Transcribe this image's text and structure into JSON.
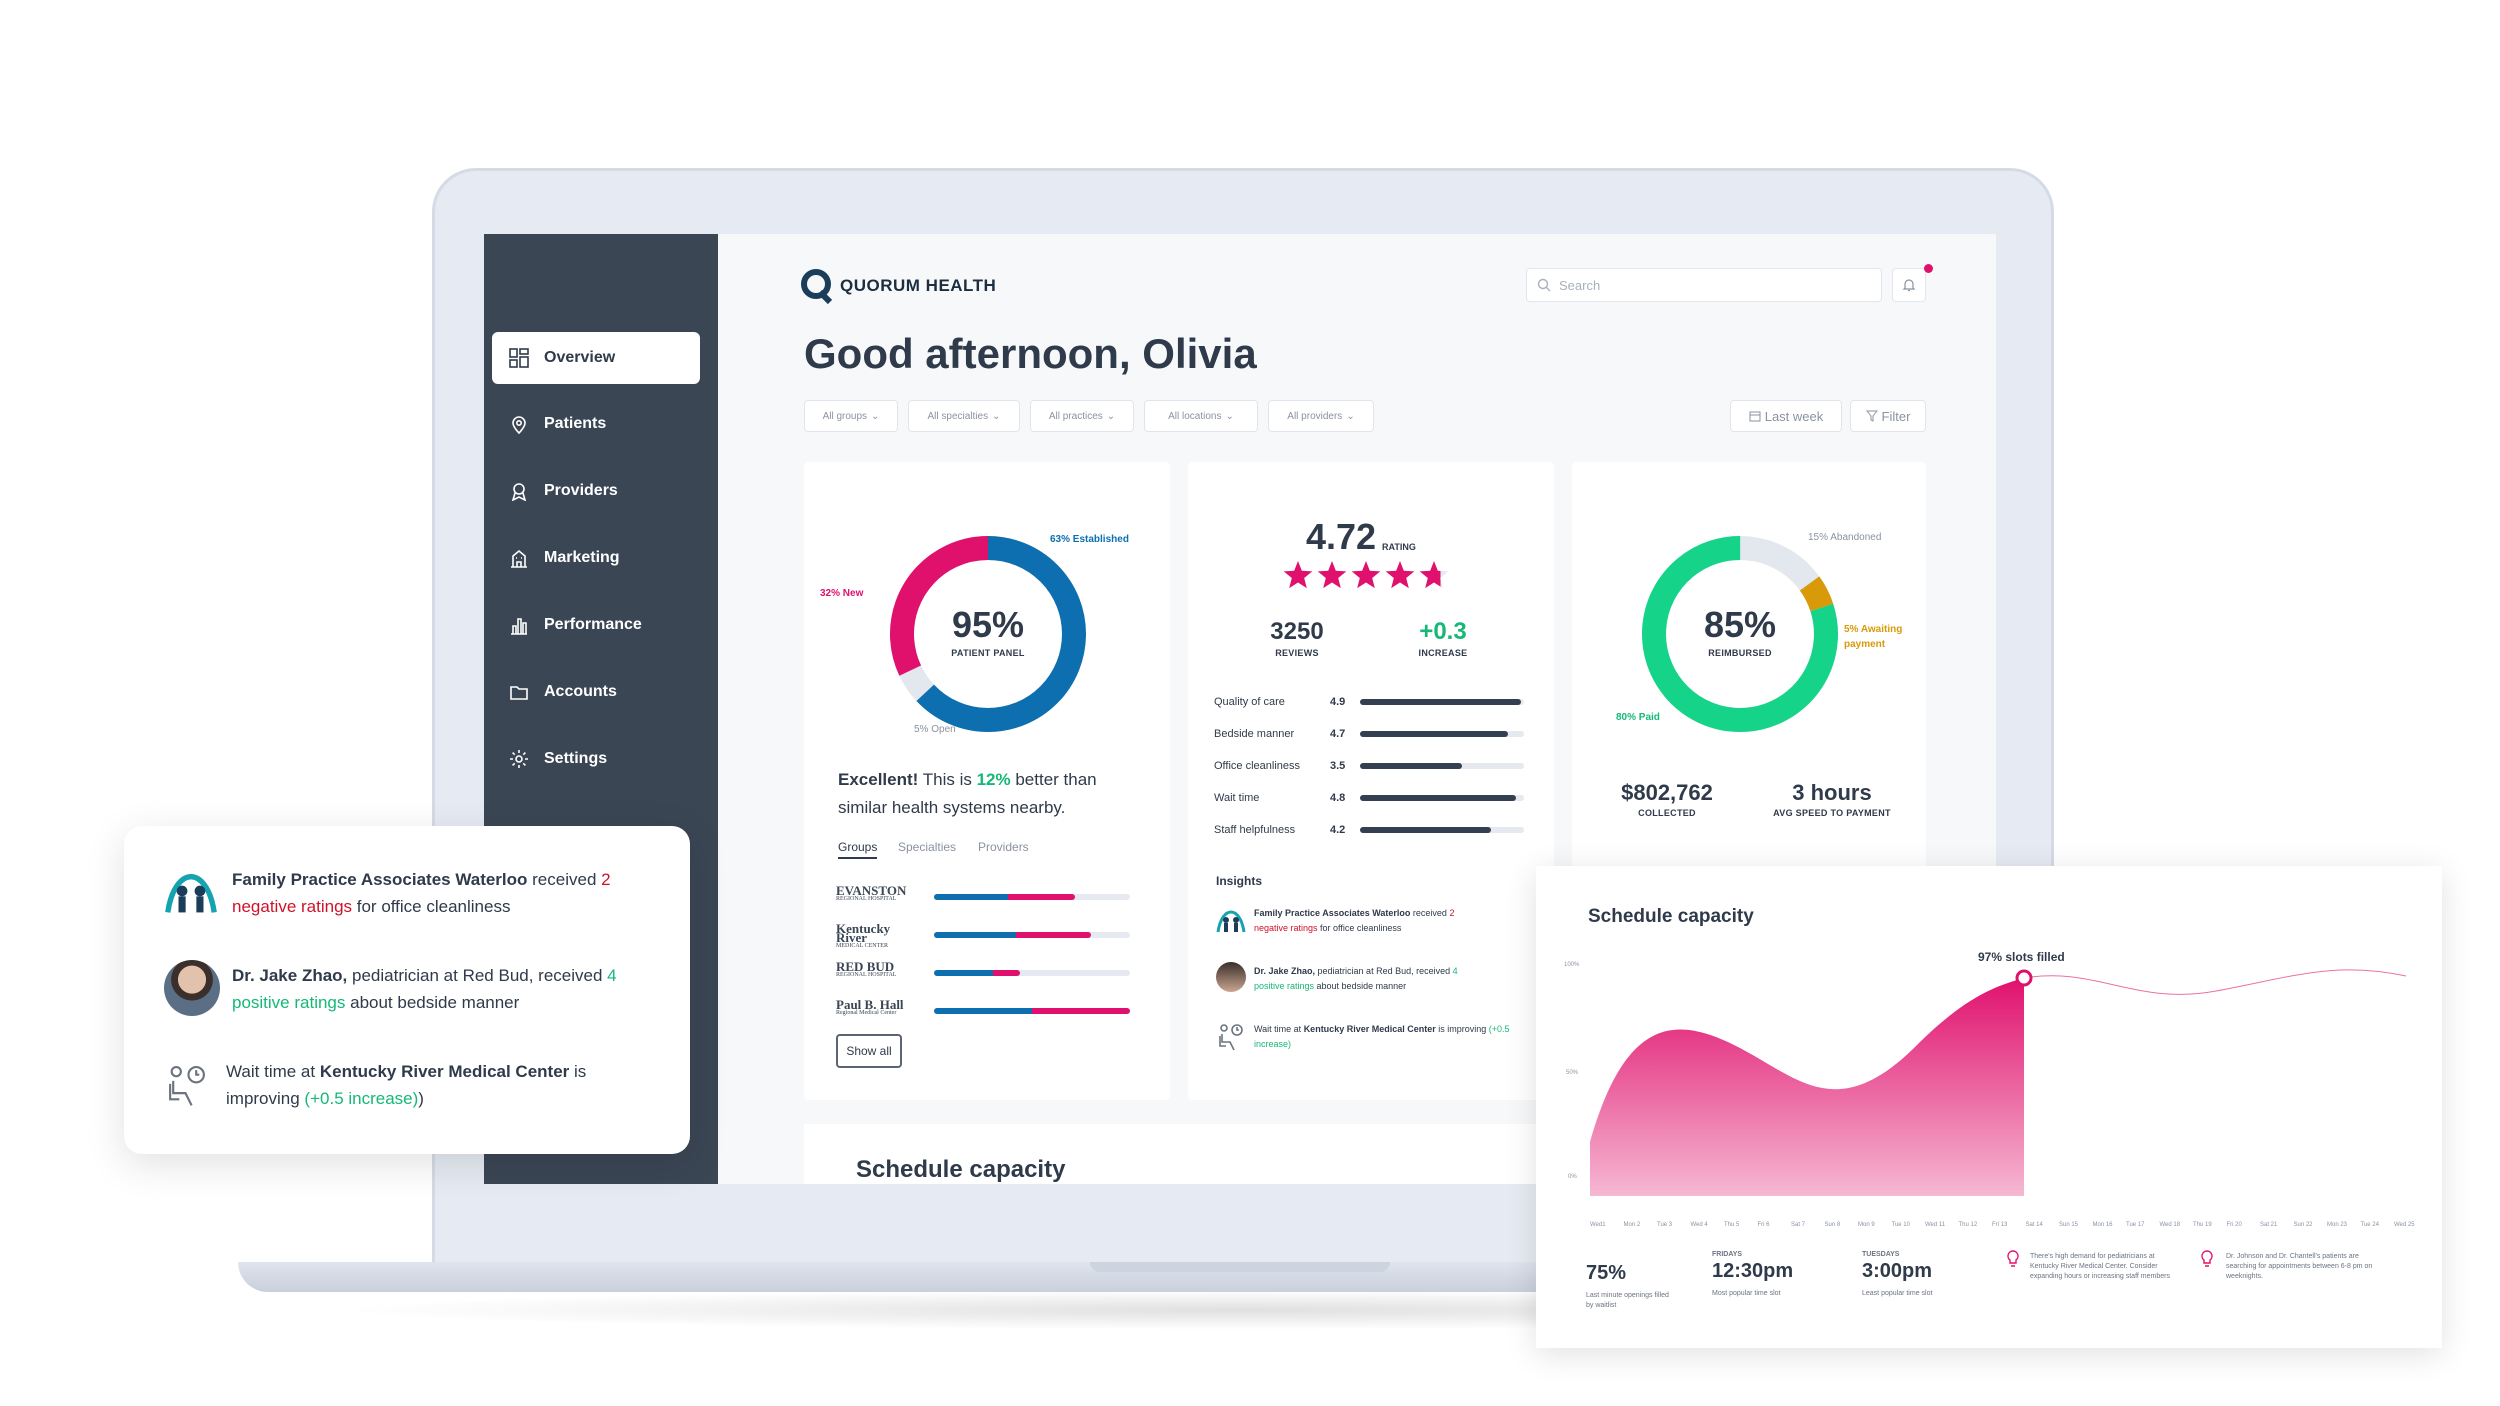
{
  "app": {
    "brand": "QUORUM HEALTH",
    "search_placeholder": "Search"
  },
  "colors": {
    "sidebar": "#3b4655",
    "accent_pink": "#e0116d",
    "accent_blue": "#0d6eb0",
    "accent_green": "#16d38a",
    "accent_gold": "#d99a0a"
  },
  "sidebar": {
    "items": [
      {
        "label": "Overview",
        "icon": "grid-icon",
        "active": true
      },
      {
        "label": "Patients",
        "icon": "location-pin-icon"
      },
      {
        "label": "Providers",
        "icon": "ribbon-icon"
      },
      {
        "label": "Marketing",
        "icon": "building-icon"
      },
      {
        "label": "Performance",
        "icon": "bar-chart-icon"
      },
      {
        "label": "Accounts",
        "icon": "folder-icon"
      },
      {
        "label": "Settings",
        "icon": "gear-icon"
      }
    ]
  },
  "greeting": "Good afternoon, Olivia",
  "filters": [
    "All groups",
    "All specialties",
    "All practices",
    "All locations",
    "All providers"
  ],
  "range": {
    "label": "Last week",
    "filter_label": "Filter"
  },
  "panel_card": {
    "value": "95%",
    "caption": "PATIENT PANEL",
    "established_label": "63% Established",
    "new_label": "32% New",
    "open_label": "5% Open",
    "segments": {
      "established": 63,
      "new": 32,
      "open": 5
    },
    "text_prefix": "Excellent!",
    "text_middle": " This is ",
    "text_highlight": "12%",
    "text_line1_end": " better than",
    "text_line2": "similar health systems nearby.",
    "tabs": [
      "Groups",
      "Specialties",
      "Providers"
    ],
    "groups": [
      {
        "name": "EVANSTON",
        "sub": "REGIONAL HOSPITAL",
        "blue": 0.38,
        "pink": 0.34
      },
      {
        "name": "Kentucky River",
        "sub": "MEDICAL CENTER",
        "blue": 0.42,
        "pink": 0.38
      },
      {
        "name": "RED BUD",
        "sub": "REGIONAL HOSPITAL",
        "blue": 0.3,
        "pink": 0.14
      },
      {
        "name": "Paul B. Hall",
        "sub": "Regional Medical Center",
        "blue": 0.5,
        "pink": 0.5
      }
    ],
    "show_all": "Show all"
  },
  "rating_card": {
    "rating": "4.72",
    "rating_label": "RATING",
    "stars": 4.72,
    "reviews": "3250",
    "reviews_label": "REVIEWS",
    "increase": "+0.3",
    "increase_label": "INCREASE",
    "metrics": [
      {
        "label": "Quality of care",
        "value": "4.9",
        "fraction": 0.98
      },
      {
        "label": "Bedside manner",
        "value": "4.7",
        "fraction": 0.9
      },
      {
        "label": "Office cleanliness",
        "value": "3.5",
        "fraction": 0.62
      },
      {
        "label": "Wait time",
        "value": "4.8",
        "fraction": 0.95
      },
      {
        "label": "Staff helpfulness",
        "value": "4.2",
        "fraction": 0.8
      }
    ],
    "insights_title": "Insights",
    "insights": [
      {
        "pre": "Family Practice Associates Waterloo",
        "mid": " received ",
        "hl": "2",
        "hl2": "negative ratings",
        "post": " for office cleanliness"
      },
      {
        "pre": "Dr. Jake Zhao,",
        "mid": " pediatrician at Red Bud, received ",
        "hl": "4",
        "hl2": "positive ratings",
        "post": " about bedside manner"
      },
      {
        "pre": "Wait time at ",
        "bold": "Kentucky River Medical Center",
        "mid": " is improving ",
        "hl": "(+0.5 increase)"
      }
    ]
  },
  "reimburse_card": {
    "value": "85%",
    "caption": "REIMBURSED",
    "abandoned_label": "15% Abandoned",
    "awaiting_label": "5% Awaiting payment",
    "paid_label": "80% Paid",
    "segments": {
      "paid": 80,
      "awaiting": 5,
      "abandoned": 15
    },
    "collected": "$802,762",
    "collected_label": "COLLECTED",
    "speed": "3 hours",
    "speed_label": "AVG SPEED TO PAYMENT"
  },
  "bottom_title": "Schedule capacity",
  "popup": {
    "items": [
      {
        "bold": "Family Practice Associates Waterloo",
        "text": " received ",
        "hl": "2",
        "hl2": "negative ratings",
        "post": " for office cleanliness"
      },
      {
        "bold": "Dr. Jake Zhao,",
        "text": " pediatrician at Red Bud, received ",
        "hl": "4",
        "hl2": "positive ratings",
        "post": " about bedside manner"
      },
      {
        "pre": "Wait time at ",
        "bold": "Kentucky River Medical Center",
        "text": " is",
        "line2": "improving ",
        "hl": "(+0.5 increase)",
        "post": ")"
      }
    ]
  },
  "schedule": {
    "title": "Schedule capacity",
    "peak_label": "97% slots filled",
    "y_ticks": [
      "100%",
      "50%",
      "0%"
    ],
    "x_ticks": [
      "Wed1",
      "Mon 2",
      "Tue 3",
      "Wed 4",
      "Thu 5",
      "Fri 6",
      "Sat 7",
      "Sun 8",
      "Mon 9",
      "Tue 10",
      "Wed 11",
      "Thu 12",
      "Fri 13",
      "Sat 14",
      "Sun 15",
      "Mon 16",
      "Tue 17",
      "Wed 18",
      "Thu 19",
      "Fri 20",
      "Sat 21",
      "Sun 22",
      "Mon 23",
      "Tue 24",
      "Wed 25"
    ],
    "stats": [
      {
        "pre": "",
        "value": "75%",
        "label": "Last minute openings filled by waitlist"
      },
      {
        "pre": "FRIDAYS",
        "value": "12:30pm",
        "label": "Most popular time slot"
      },
      {
        "pre": "TUESDAYS",
        "value": "3:00pm",
        "label": "Least popular time slot"
      }
    ],
    "notes": [
      "There's high demand for pediatricians at Kentucky River Medical Center. Consider expanding hours or increasing staff members",
      "Dr. Johnson and Dr. Chantell's patients are searching for appointments between 6-8 pm on weeknights."
    ]
  }
}
